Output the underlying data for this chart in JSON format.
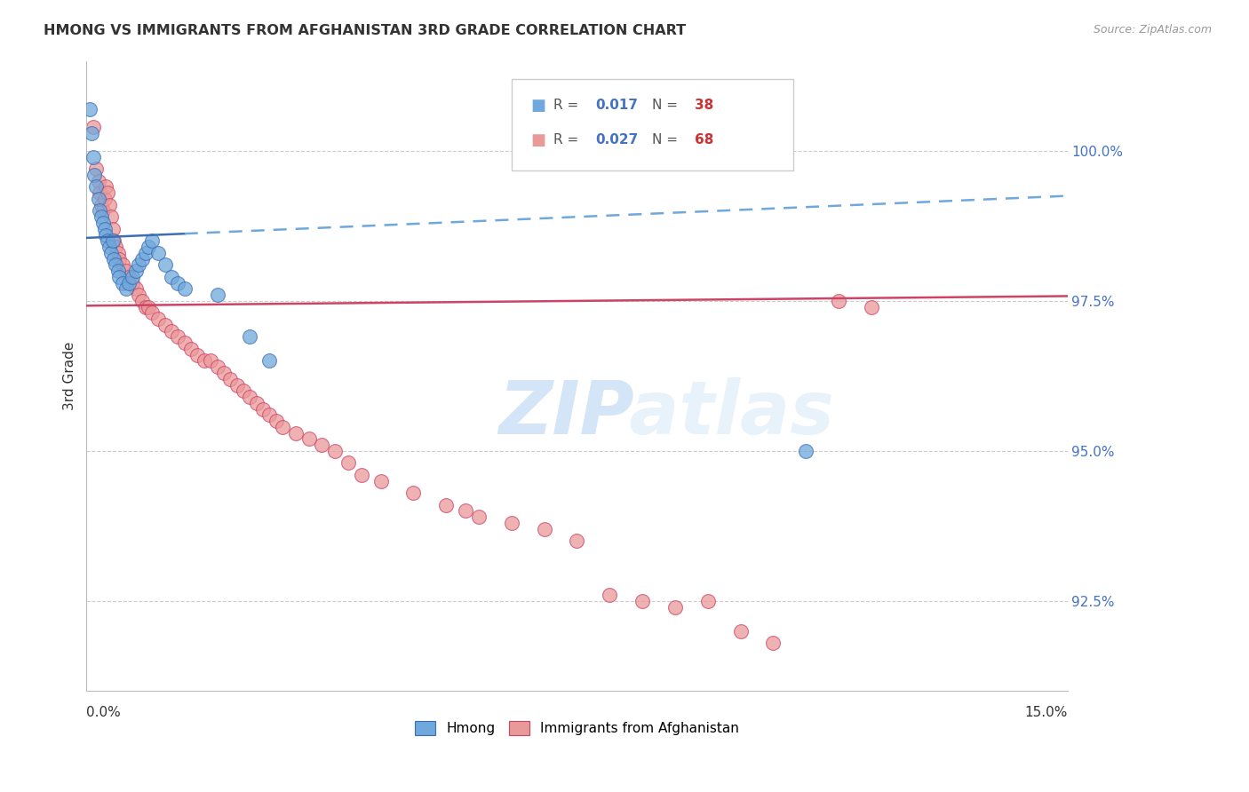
{
  "title": "HMONG VS IMMIGRANTS FROM AFGHANISTAN 3RD GRADE CORRELATION CHART",
  "source": "Source: ZipAtlas.com",
  "ylabel": "3rd Grade",
  "ymin": 91.0,
  "ymax": 101.5,
  "xmin": 0.0,
  "xmax": 15.0,
  "legend_blue_r": "0.017",
  "legend_blue_n": "38",
  "legend_pink_r": "0.027",
  "legend_pink_n": "68",
  "blue_color": "#6fa8dc",
  "pink_color": "#ea9999",
  "blue_line_color": "#3d6eb4",
  "pink_line_color": "#cc4466",
  "yticks": [
    92.5,
    95.0,
    97.5,
    100.0
  ],
  "blue_scatter_x": [
    0.05,
    0.08,
    0.1,
    0.12,
    0.15,
    0.18,
    0.2,
    0.22,
    0.25,
    0.28,
    0.3,
    0.32,
    0.35,
    0.38,
    0.4,
    0.42,
    0.45,
    0.48,
    0.5,
    0.55,
    0.6,
    0.65,
    0.7,
    0.75,
    0.8,
    0.85,
    0.9,
    0.95,
    1.0,
    1.1,
    1.2,
    1.3,
    1.4,
    1.5,
    2.0,
    2.5,
    2.8,
    11.0
  ],
  "blue_scatter_y": [
    100.7,
    100.3,
    99.9,
    99.6,
    99.4,
    99.2,
    99.0,
    98.9,
    98.8,
    98.7,
    98.6,
    98.5,
    98.4,
    98.3,
    98.5,
    98.2,
    98.1,
    98.0,
    97.9,
    97.8,
    97.7,
    97.8,
    97.9,
    98.0,
    98.1,
    98.2,
    98.3,
    98.4,
    98.5,
    98.3,
    98.1,
    97.9,
    97.8,
    97.7,
    97.6,
    96.9,
    96.5,
    95.0
  ],
  "pink_scatter_x": [
    0.1,
    0.15,
    0.18,
    0.2,
    0.22,
    0.25,
    0.28,
    0.3,
    0.32,
    0.35,
    0.38,
    0.4,
    0.42,
    0.45,
    0.48,
    0.5,
    0.55,
    0.6,
    0.65,
    0.7,
    0.75,
    0.8,
    0.85,
    0.9,
    0.95,
    1.0,
    1.1,
    1.2,
    1.3,
    1.4,
    1.5,
    1.6,
    1.7,
    1.8,
    1.9,
    2.0,
    2.1,
    2.2,
    2.3,
    2.4,
    2.5,
    2.6,
    2.7,
    2.8,
    2.9,
    3.0,
    3.2,
    3.4,
    3.6,
    3.8,
    4.0,
    4.2,
    4.5,
    5.0,
    5.5,
    5.8,
    6.0,
    6.5,
    7.0,
    7.5,
    8.0,
    8.5,
    9.0,
    9.5,
    10.0,
    10.5,
    11.5,
    12.0
  ],
  "pink_scatter_y": [
    100.4,
    99.7,
    99.5,
    99.3,
    99.1,
    99.0,
    99.2,
    99.4,
    99.3,
    99.1,
    98.9,
    98.7,
    98.5,
    98.4,
    98.3,
    98.2,
    98.1,
    98.0,
    97.9,
    97.8,
    97.7,
    97.6,
    97.5,
    97.4,
    97.4,
    97.3,
    97.2,
    97.1,
    97.0,
    96.9,
    96.8,
    96.7,
    96.6,
    96.5,
    96.5,
    96.4,
    96.3,
    96.2,
    96.1,
    96.0,
    95.9,
    95.8,
    95.7,
    95.6,
    95.5,
    95.4,
    95.3,
    95.2,
    95.1,
    95.0,
    94.8,
    94.6,
    94.5,
    94.3,
    94.1,
    94.0,
    93.9,
    93.8,
    93.7,
    93.5,
    92.6,
    92.5,
    92.4,
    92.5,
    92.0,
    91.8,
    97.5,
    97.4
  ],
  "blue_trend_x": [
    0.0,
    1.5,
    15.0
  ],
  "blue_trend_y": [
    98.55,
    98.62,
    99.25
  ],
  "pink_trend_x": [
    0.0,
    15.0
  ],
  "pink_trend_y": [
    97.42,
    97.58
  ]
}
